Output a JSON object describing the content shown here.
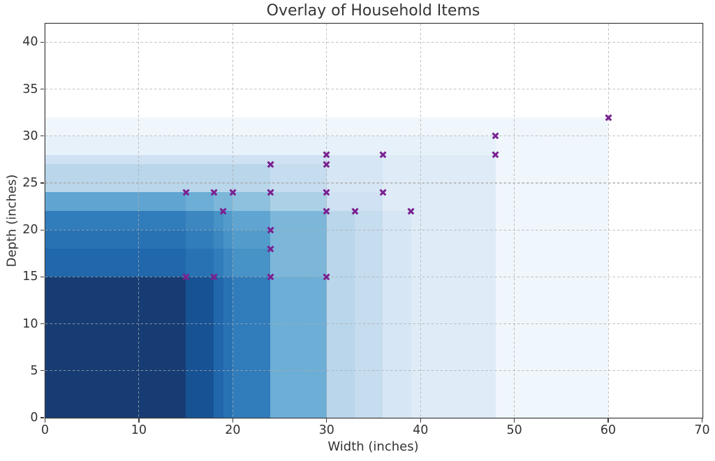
{
  "chart_data": {
    "type": "scatter",
    "title": "Overlay of Household Items",
    "xlabel": "Width (inches)",
    "ylabel": "Depth (inches)",
    "xlim": [
      0,
      70
    ],
    "ylim": [
      0,
      42
    ],
    "xticks": [
      0,
      10,
      20,
      30,
      40,
      50,
      60,
      70
    ],
    "yticks": [
      0,
      5,
      10,
      15,
      20,
      25,
      30,
      35,
      40
    ],
    "grid": true,
    "legend_position": "none",
    "marker_shape": "x",
    "items_unit": "inches (width, depth)",
    "items": [
      [
        15,
        15
      ],
      [
        15,
        24
      ],
      [
        18,
        15
      ],
      [
        18,
        24
      ],
      [
        19,
        22
      ],
      [
        20,
        24
      ],
      [
        24,
        15
      ],
      [
        24,
        18
      ],
      [
        24,
        20
      ],
      [
        24,
        24
      ],
      [
        24,
        27
      ],
      [
        30,
        15
      ],
      [
        30,
        22
      ],
      [
        30,
        24
      ],
      [
        30,
        27
      ],
      [
        30,
        28
      ],
      [
        33,
        22
      ],
      [
        36,
        24
      ],
      [
        36,
        28
      ],
      [
        39,
        22
      ],
      [
        48,
        28
      ],
      [
        48,
        30
      ],
      [
        60,
        32
      ]
    ],
    "overlay": {
      "description": "each item drawn as a rectangle from the origin to (width, depth); shade of each region encodes the number of overlapping item rectangles",
      "max_overlap": 23,
      "colormap": "Blues",
      "colormap_stops": [
        "#f7fbff",
        "#deebf7",
        "#c6dbef",
        "#9ecae1",
        "#6baed6",
        "#4292c6",
        "#2171b5",
        "#08519c",
        "#08306b"
      ]
    },
    "colors": {
      "marker": "#7a2191",
      "grid": "#acacac",
      "spine": "#3c3c3c",
      "text": "#333333",
      "background": "#ffffff"
    }
  }
}
